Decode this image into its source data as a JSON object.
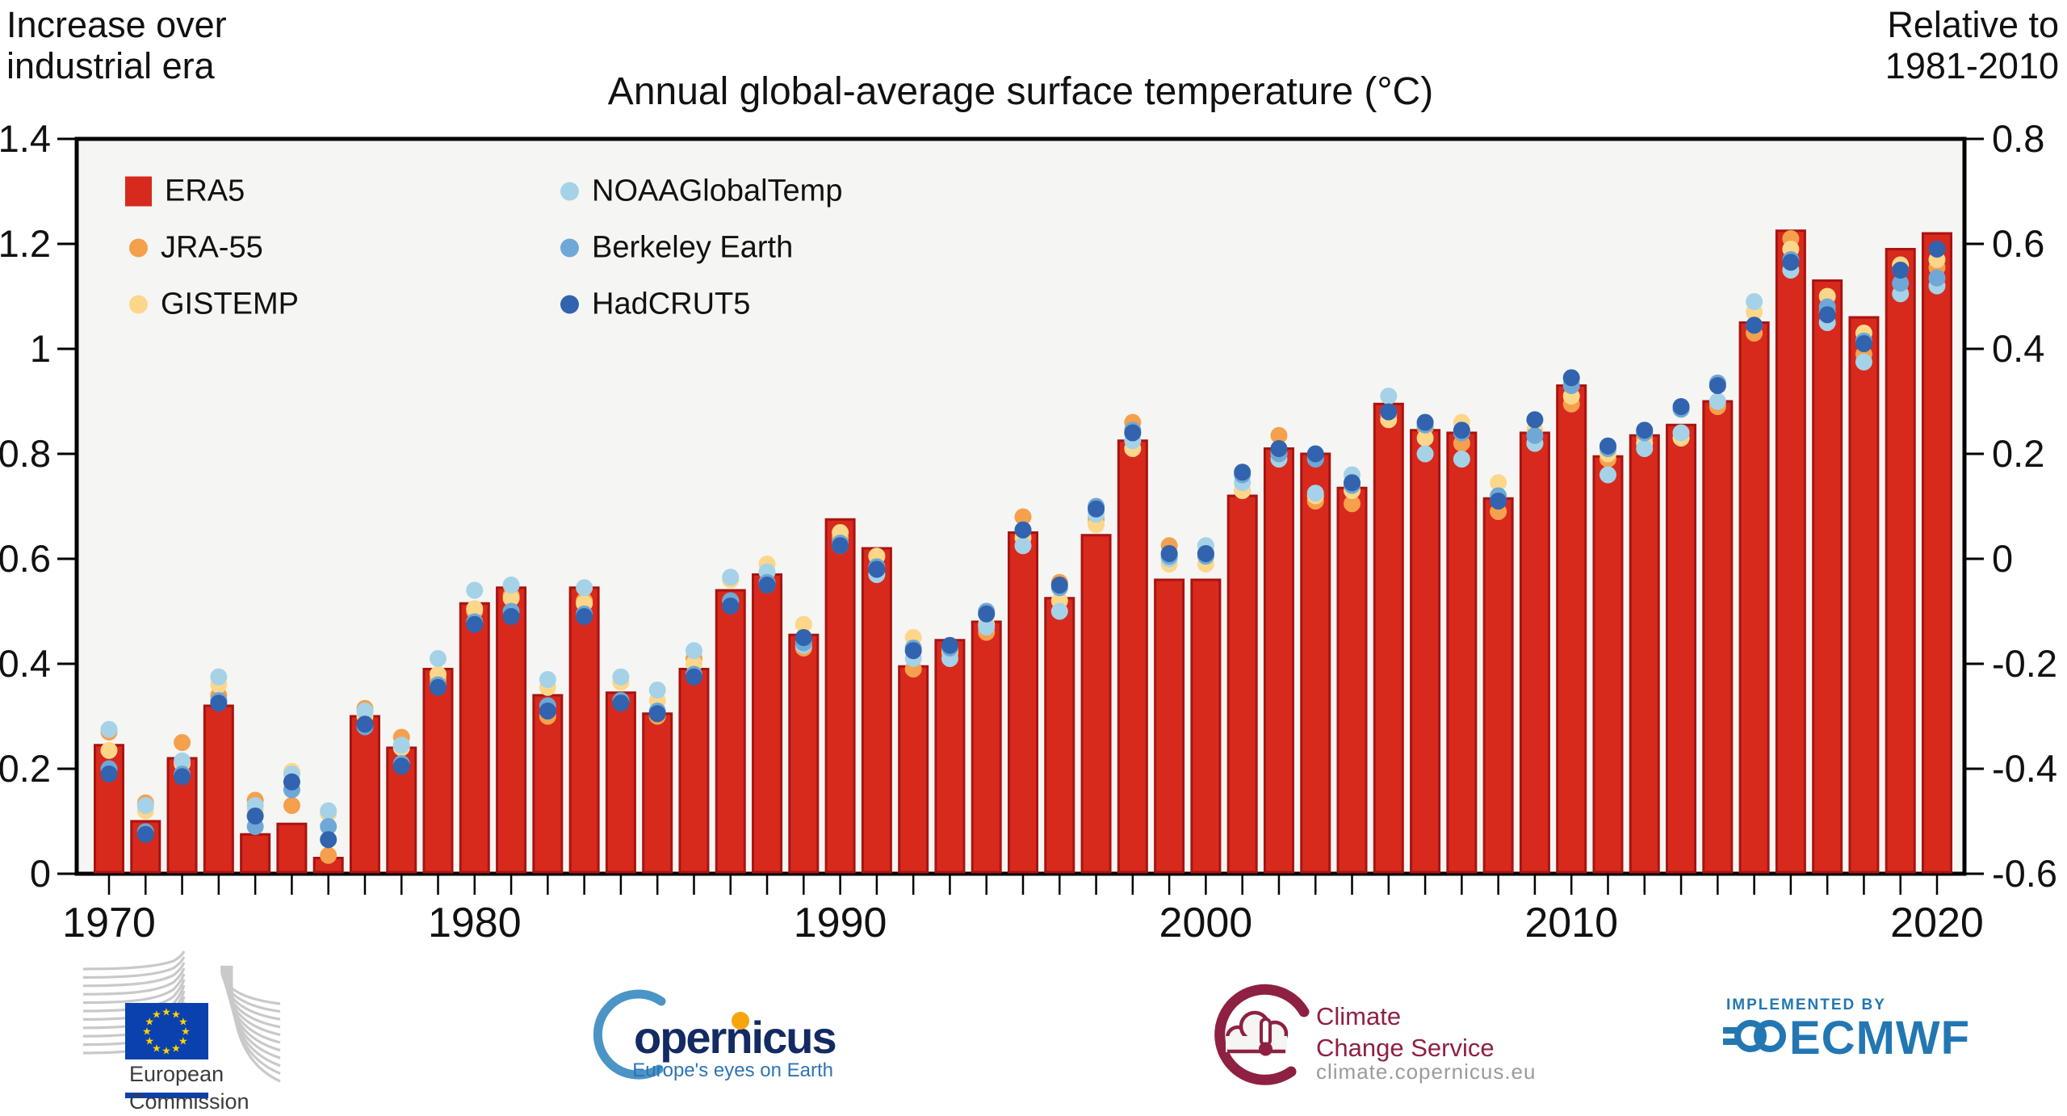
{
  "header": {
    "title": "Annual global-average surface temperature (°C)",
    "left_label": "Increase over\nindustrial era",
    "right_label": "Relative to\n1981-2010"
  },
  "legend": {
    "items": [
      {
        "label": "ERA5",
        "color": "#d8291d",
        "shape": "square"
      },
      {
        "label": "JRA-55",
        "color": "#f5a04c",
        "shape": "dot"
      },
      {
        "label": "GISTEMP",
        "color": "#fcd78a",
        "shape": "dot"
      },
      {
        "label": "NOAAGlobalTemp",
        "color": "#a5d2e7",
        "shape": "dot"
      },
      {
        "label": "Berkeley Earth",
        "color": "#6fa8d6",
        "shape": "dot"
      },
      {
        "label": "HadCRUT5",
        "color": "#3263ae",
        "shape": "dot"
      }
    ]
  },
  "chart_data": {
    "type": "bar",
    "title": "Annual global-average surface temperature (°C)",
    "years_start": 1970,
    "years_end": 2020,
    "x_tick_labels": [
      "1970",
      "1980",
      "1990",
      "2000",
      "2010",
      "2020"
    ],
    "left_axis": {
      "label": "Increase over industrial era",
      "unit": "°C",
      "range": [
        0,
        1.4
      ],
      "ticks": [
        "1.4",
        "1.2",
        "1",
        "0.8",
        "0.6",
        "0.4",
        "0.2",
        "0"
      ]
    },
    "right_axis": {
      "label": "Relative to 1981-2010",
      "unit": "°C",
      "range": [
        -0.6,
        0.8
      ],
      "ticks": [
        "0.8",
        "0.6",
        "0.4",
        "0.2",
        "0",
        "-0.2",
        "-0.4",
        "-0.6"
      ]
    },
    "grid": false,
    "plot_background": "#f5f5f3",
    "bar_series": {
      "name": "ERA5",
      "color": "#d8291d",
      "edge_color": "#a81410",
      "values": [
        0.245,
        0.1,
        0.22,
        0.32,
        0.075,
        0.095,
        0.03,
        0.3,
        0.24,
        0.39,
        0.515,
        0.545,
        0.34,
        0.545,
        0.345,
        0.305,
        0.39,
        0.54,
        0.57,
        0.455,
        0.675,
        0.62,
        0.395,
        0.445,
        0.48,
        0.65,
        0.525,
        0.645,
        0.825,
        0.56,
        0.56,
        0.72,
        0.81,
        0.8,
        0.735,
        0.895,
        0.845,
        0.84,
        0.715,
        0.84,
        0.93,
        0.795,
        0.835,
        0.855,
        0.9,
        1.05,
        1.225,
        1.13,
        1.06,
        1.19,
        1.22
      ]
    },
    "dot_series": [
      {
        "name": "JRA-55",
        "color": "#f5a04c",
        "values": [
          0.27,
          0.135,
          0.25,
          0.34,
          0.14,
          0.13,
          0.035,
          0.315,
          0.26,
          0.37,
          0.5,
          0.53,
          0.3,
          0.52,
          0.33,
          0.3,
          0.41,
          0.52,
          0.55,
          0.43,
          0.64,
          0.605,
          0.39,
          0.42,
          0.46,
          0.68,
          0.555,
          0.675,
          0.86,
          0.625,
          0.61,
          0.73,
          0.835,
          0.71,
          0.705,
          0.875,
          0.85,
          0.82,
          0.69,
          0.82,
          0.895,
          0.79,
          0.83,
          0.84,
          0.89,
          1.03,
          1.21,
          1.07,
          0.99,
          1.15,
          1.155
        ]
      },
      {
        "name": "GISTEMP",
        "color": "#fcd78a",
        "values": [
          0.235,
          0.12,
          0.21,
          0.36,
          0.12,
          0.195,
          0.115,
          0.3,
          0.24,
          0.38,
          0.505,
          0.525,
          0.355,
          0.515,
          0.365,
          0.33,
          0.4,
          0.56,
          0.59,
          0.475,
          0.65,
          0.605,
          0.45,
          0.425,
          0.475,
          0.64,
          0.52,
          0.665,
          0.81,
          0.59,
          0.59,
          0.73,
          0.8,
          0.72,
          0.73,
          0.865,
          0.83,
          0.86,
          0.745,
          0.845,
          0.91,
          0.8,
          0.82,
          0.83,
          0.93,
          1.07,
          1.19,
          1.1,
          1.03,
          1.16,
          1.17
        ]
      },
      {
        "name": "NOAAGlobalTemp",
        "color": "#a5d2e7",
        "values": [
          0.275,
          0.13,
          0.215,
          0.375,
          0.13,
          0.19,
          0.12,
          0.31,
          0.245,
          0.41,
          0.54,
          0.55,
          0.37,
          0.545,
          0.375,
          0.35,
          0.425,
          0.565,
          0.575,
          0.435,
          0.625,
          0.57,
          0.41,
          0.41,
          0.47,
          0.625,
          0.5,
          0.685,
          0.825,
          0.6,
          0.625,
          0.745,
          0.79,
          0.725,
          0.76,
          0.91,
          0.8,
          0.79,
          0.72,
          0.82,
          0.935,
          0.76,
          0.81,
          0.84,
          0.9,
          1.09,
          1.15,
          1.05,
          0.975,
          1.105,
          1.12
        ]
      },
      {
        "name": "Berkeley Earth",
        "color": "#6fa8d6",
        "values": [
          0.2,
          0.08,
          0.19,
          0.33,
          0.09,
          0.16,
          0.09,
          0.28,
          0.21,
          0.36,
          0.48,
          0.5,
          0.32,
          0.495,
          0.33,
          0.31,
          0.38,
          0.52,
          0.555,
          0.44,
          0.63,
          0.585,
          0.43,
          0.43,
          0.5,
          0.655,
          0.545,
          0.7,
          0.845,
          0.605,
          0.605,
          0.76,
          0.8,
          0.79,
          0.74,
          0.88,
          0.855,
          0.84,
          0.72,
          0.835,
          0.93,
          0.81,
          0.84,
          0.885,
          0.935,
          1.045,
          1.17,
          1.08,
          1.015,
          1.125,
          1.135
        ]
      },
      {
        "name": "HadCRUT5",
        "color": "#3263ae",
        "values": [
          0.19,
          0.075,
          0.185,
          0.325,
          0.11,
          0.175,
          0.065,
          0.285,
          0.205,
          0.355,
          0.475,
          0.49,
          0.31,
          0.49,
          0.325,
          0.305,
          0.375,
          0.51,
          0.55,
          0.45,
          0.625,
          0.58,
          0.425,
          0.435,
          0.495,
          0.655,
          0.55,
          0.695,
          0.84,
          0.61,
          0.61,
          0.765,
          0.81,
          0.8,
          0.745,
          0.88,
          0.86,
          0.845,
          0.71,
          0.865,
          0.945,
          0.815,
          0.845,
          0.89,
          0.93,
          1.045,
          1.165,
          1.065,
          1.01,
          1.15,
          1.19
        ]
      }
    ]
  },
  "footer": {
    "ec": {
      "line1": "European",
      "line2": "Commission"
    },
    "copernicus": {
      "wordmark": "opernicus",
      "tagline": "Europe's eyes on Earth"
    },
    "ccs": {
      "name": "Climate\nChange Service",
      "url": "climate.copernicus.eu"
    },
    "ecmwf": {
      "implemented_by": "IMPLEMENTED BY",
      "wordmark": "ECMWF"
    }
  }
}
